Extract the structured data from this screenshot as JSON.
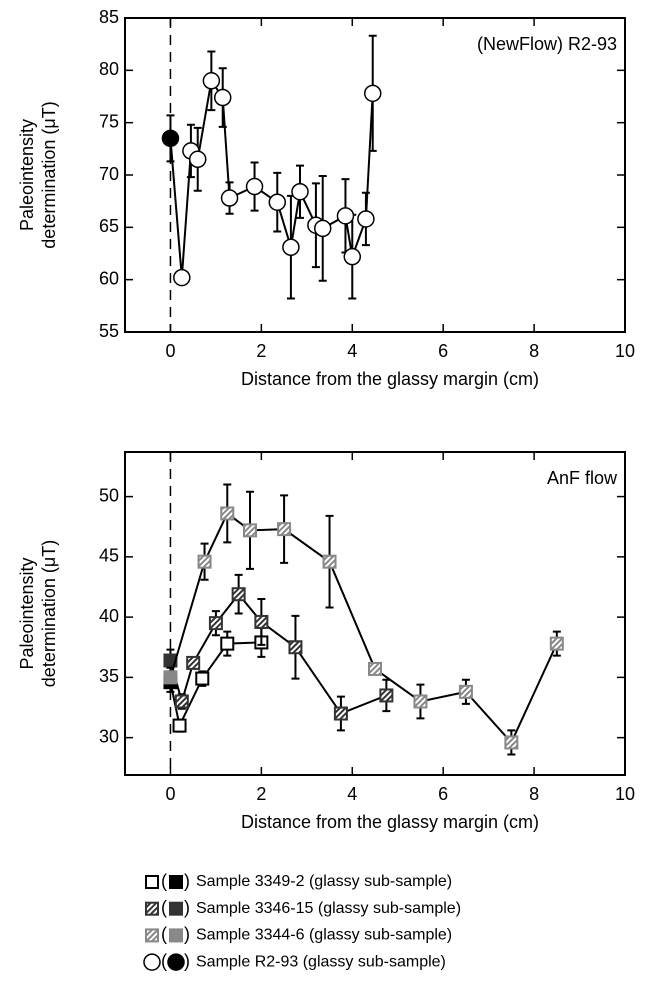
{
  "chart_data": [
    {
      "type": "line",
      "annotation": "(NewFlow) R2-93",
      "y_label_lines": [
        "Paleointensity",
        "determination (μT)"
      ],
      "x_label": "Distance from the glassy margin (cm)",
      "xlim": [
        -1,
        10
      ],
      "xticks": [
        0,
        2,
        4,
        6,
        8,
        10
      ],
      "ylim": [
        55,
        85
      ],
      "yticks": [
        55,
        60,
        65,
        70,
        75,
        80,
        85
      ],
      "vline_x": 0,
      "series": [
        {
          "name": "Sample R2-93 (glassy sub-sample)",
          "marker": "circle",
          "color": "#000000",
          "x": [
            0.25,
            0.45,
            0.6,
            0.9,
            1.15,
            1.3,
            1.85,
            2.35,
            2.65,
            2.85,
            3.2,
            3.35,
            3.85,
            4.0,
            4.3,
            4.45
          ],
          "values": [
            60.2,
            72.3,
            71.5,
            79.0,
            77.4,
            67.8,
            68.9,
            67.4,
            63.1,
            68.4,
            65.2,
            64.9,
            66.1,
            62.2,
            65.8,
            77.8
          ],
          "errors": [
            0.3,
            2.5,
            3.0,
            2.8,
            2.8,
            1.5,
            2.3,
            2.8,
            4.9,
            2.5,
            4.0,
            5.0,
            3.5,
            4.0,
            2.5,
            5.5
          ],
          "glassy": {
            "x": [
              0
            ],
            "values": [
              73.5
            ],
            "errors": [
              2.2
            ]
          }
        }
      ]
    },
    {
      "type": "line",
      "annotation": "AnF flow",
      "y_label_lines": [
        "Paleointensity",
        "determination (μT)"
      ],
      "x_label": "Distance from the glassy margin (cm)",
      "xlim": [
        -1,
        10
      ],
      "xticks": [
        0,
        2,
        4,
        6,
        8,
        10
      ],
      "ylim": [
        26.9,
        53.7
      ],
      "yticks": [
        30,
        35,
        40,
        45,
        50
      ],
      "vline_x": 0,
      "series": [
        {
          "name": "Sample 3349-2 (glassy sub-sample)",
          "marker": "square",
          "color": "#000000",
          "x": [
            0.2,
            0.7,
            1.25,
            2.0
          ],
          "values": [
            31.0,
            34.9,
            37.8,
            37.9
          ],
          "errors": [
            0.5,
            0.6,
            1.0,
            1.2
          ],
          "glassy": {
            "x": [
              0
            ],
            "values": [
              34.6
            ],
            "errors": [
              0.8
            ]
          }
        },
        {
          "name": "Sample 3346-15 (glassy sub-sample)",
          "marker": "hatched-square",
          "color": "#333333",
          "x": [
            0.25,
            0.5,
            1.0,
            1.5,
            2.0,
            2.75,
            3.75,
            4.75
          ],
          "values": [
            33.0,
            36.2,
            39.5,
            41.9,
            39.6,
            37.5,
            32.0,
            33.5
          ],
          "errors": [
            0.6,
            0.4,
            1.0,
            1.6,
            1.9,
            2.6,
            1.4,
            1.3
          ],
          "glassy": {
            "x": [
              0
            ],
            "values": [
              36.4
            ],
            "errors": [
              0.9
            ]
          }
        },
        {
          "name": "Sample 3344-6 (glassy sub-sample)",
          "marker": "hatched-square",
          "color": "#888888",
          "x": [
            0.75,
            1.25,
            1.75,
            2.5,
            3.5,
            4.5,
            5.5,
            6.5,
            7.5,
            8.5
          ],
          "values": [
            44.6,
            48.6,
            47.2,
            47.3,
            44.6,
            35.7,
            33.0,
            33.8,
            29.6,
            37.8
          ],
          "errors": [
            1.5,
            2.4,
            3.2,
            2.8,
            3.8,
            0.4,
            1.4,
            1.0,
            1.0,
            1.0
          ],
          "glassy": {
            "x": [
              0
            ],
            "values": [
              35.0
            ],
            "errors": [
              0.8
            ]
          }
        }
      ]
    }
  ]
}
